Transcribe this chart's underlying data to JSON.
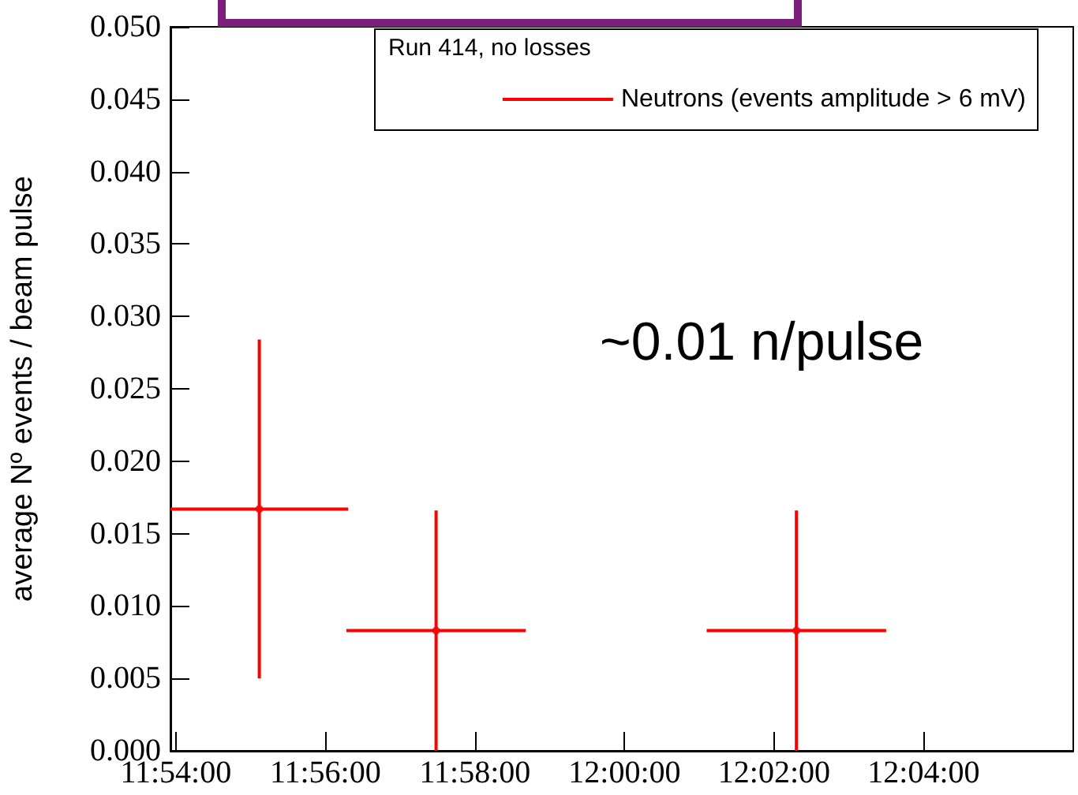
{
  "chart_data": {
    "type": "scatter",
    "ylabel": "average Nº events / beam pulse",
    "legend_title": "Run 414, no losses",
    "legend": "top right",
    "annotations": [
      "~0.01 n/pulse"
    ],
    "series": [
      {
        "name": "Neutrons (events amplitude > 6 mV)",
        "color": "#ff0000",
        "x": [
          11.9186,
          11.958,
          12.0383
        ],
        "values": [
          0.0167,
          0.0083,
          0.0083
        ],
        "errors": [
          0.0117,
          0.0083,
          0.0083
        ],
        "xerrors": [
          0.0198,
          0.02,
          0.02
        ]
      }
    ],
    "xlim": [
      11.8988,
      12.1
    ],
    "xticks": [
      {
        "value": 11.9,
        "label": "11:54:00"
      },
      {
        "value": 11.933333,
        "label": "11:56:00"
      },
      {
        "value": 11.966667,
        "label": "11:58:00"
      },
      {
        "value": 12,
        "label": "12:00:00"
      },
      {
        "value": 12.033333,
        "label": "12:02:00"
      },
      {
        "value": 12.066667,
        "label": "12:04:00"
      }
    ],
    "ylim": [
      0,
      0.05
    ],
    "yticks": [
      {
        "value": 0,
        "label": "0.000"
      },
      {
        "value": 0.005,
        "label": "0.005"
      },
      {
        "value": 0.01,
        "label": "0.010"
      },
      {
        "value": 0.015,
        "label": "0.015"
      },
      {
        "value": 0.02,
        "label": "0.020"
      },
      {
        "value": 0.025,
        "label": "0.025"
      },
      {
        "value": 0.03,
        "label": "0.030"
      },
      {
        "value": 0.035,
        "label": "0.035"
      },
      {
        "value": 0.04,
        "label": "0.040"
      },
      {
        "value": 0.045,
        "label": "0.045"
      },
      {
        "value": 0.05,
        "label": "0.050"
      }
    ]
  }
}
